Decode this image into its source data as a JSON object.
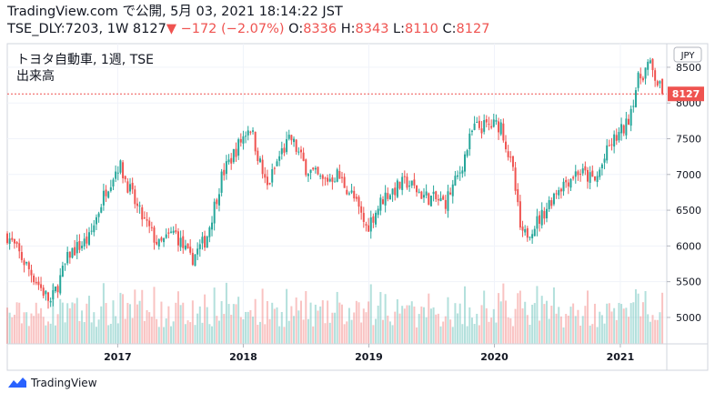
{
  "header": {
    "line1": "TradingView.com で公開, 5月 03, 2021 18:14:22 JST",
    "symbol": "TSE_DLY:7203, 1W",
    "last": "8127",
    "change_arrow": "▼",
    "change": "−172 (−2.07%)",
    "o_label": "O:",
    "o_value": "8336",
    "h_label": "H:",
    "h_value": "8343",
    "l_label": "L:",
    "l_value": "8110",
    "c_label": "C:",
    "c_value": "8127"
  },
  "legend": {
    "title": "トヨタ自動車, 1週, TSE",
    "volume_label": "出来高"
  },
  "currency_badge": "JPY",
  "last_price_label": "8127",
  "footer": {
    "brand": "TradingView"
  },
  "colors": {
    "up": "#26a69a",
    "down": "#ef5350",
    "grid": "#f0f3fa",
    "axis_text": "#131722",
    "last_line": "#ef5350"
  },
  "chart_data": {
    "type": "candlestick",
    "y_ticks": [
      5000,
      5500,
      6000,
      6500,
      7000,
      7500,
      8000,
      8500
    ],
    "ylim": [
      4630,
      8830
    ],
    "x_ticks": [
      {
        "label": "2017",
        "date": "2017-01-01"
      },
      {
        "label": "2018",
        "date": "2018-01-01"
      },
      {
        "label": "2019",
        "date": "2019-01-01"
      },
      {
        "label": "2020",
        "date": "2020-01-01"
      },
      {
        "label": "2021",
        "date": "2021-01-01"
      }
    ],
    "last_price": 8127,
    "close_anchors": [
      {
        "date": "2016-02-15",
        "close": 6150
      },
      {
        "date": "2016-04-01",
        "close": 5800
      },
      {
        "date": "2016-06-20",
        "close": 5200
      },
      {
        "date": "2016-08-15",
        "close": 5900
      },
      {
        "date": "2016-10-10",
        "close": 6100
      },
      {
        "date": "2016-11-28",
        "close": 6800
      },
      {
        "date": "2017-01-05",
        "close": 7150
      },
      {
        "date": "2017-03-01",
        "close": 6500
      },
      {
        "date": "2017-05-01",
        "close": 6000
      },
      {
        "date": "2017-06-15",
        "close": 6200
      },
      {
        "date": "2017-08-01",
        "close": 5800
      },
      {
        "date": "2017-09-15",
        "close": 6100
      },
      {
        "date": "2017-11-01",
        "close": 7000
      },
      {
        "date": "2018-01-20",
        "close": 7700
      },
      {
        "date": "2018-03-10",
        "close": 6800
      },
      {
        "date": "2018-04-20",
        "close": 7300
      },
      {
        "date": "2018-05-20",
        "close": 7500
      },
      {
        "date": "2018-07-01",
        "close": 7100
      },
      {
        "date": "2018-08-20",
        "close": 6900
      },
      {
        "date": "2018-10-01",
        "close": 7000
      },
      {
        "date": "2018-11-15",
        "close": 6700
      },
      {
        "date": "2018-12-25",
        "close": 6250
      },
      {
        "date": "2019-02-15",
        "close": 6700
      },
      {
        "date": "2019-04-20",
        "close": 6900
      },
      {
        "date": "2019-06-10",
        "close": 6700
      },
      {
        "date": "2019-08-10",
        "close": 6600
      },
      {
        "date": "2019-09-20",
        "close": 7000
      },
      {
        "date": "2019-11-01",
        "close": 7650
      },
      {
        "date": "2020-01-20",
        "close": 7700
      },
      {
        "date": "2020-02-25",
        "close": 7000
      },
      {
        "date": "2020-03-20",
        "close": 6100
      },
      {
        "date": "2020-05-15",
        "close": 6400
      },
      {
        "date": "2020-07-01",
        "close": 6800
      },
      {
        "date": "2020-09-01",
        "close": 7050
      },
      {
        "date": "2020-10-20",
        "close": 6900
      },
      {
        "date": "2020-12-01",
        "close": 7400
      },
      {
        "date": "2021-01-20",
        "close": 7700
      },
      {
        "date": "2021-02-20",
        "close": 8300
      },
      {
        "date": "2021-03-25",
        "close": 8550
      },
      {
        "date": "2021-05-03",
        "close": 8127
      }
    ],
    "start_date": "2016-02-15",
    "end_date": "2021-05-03",
    "xlim": [
      "2016-02-15",
      "2021-05-16"
    ]
  }
}
